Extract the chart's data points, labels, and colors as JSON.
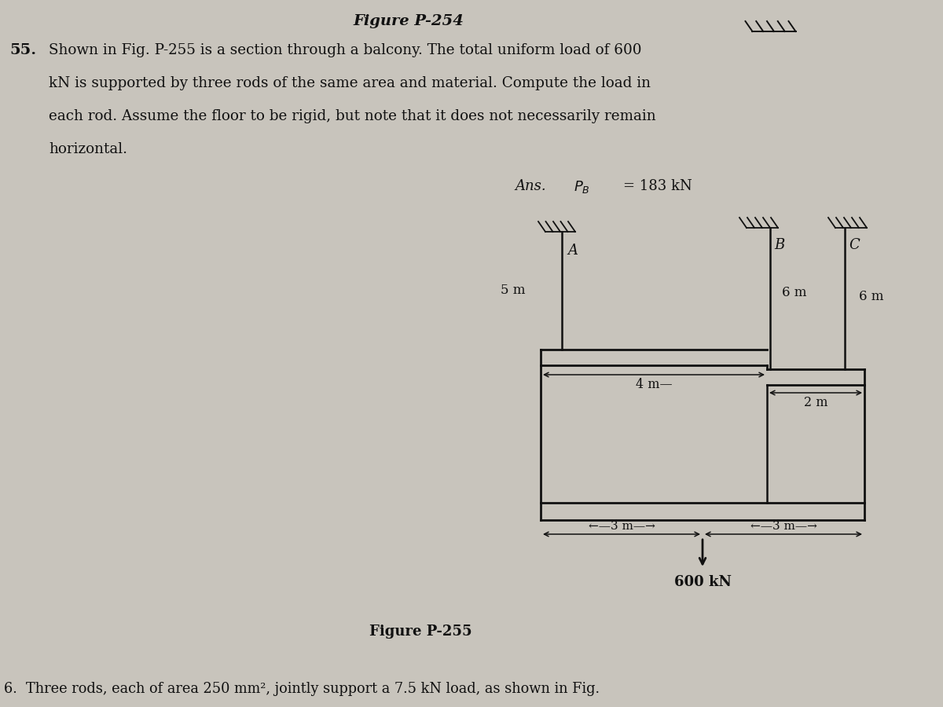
{
  "bg_color": "#c8c4bc",
  "title_top": "Figure P-254",
  "problem_number": "55.",
  "problem_text_line1": "Shown in Fig. P-255 is a section through a balcony. The total uniform load of 600",
  "problem_text_line2": "kN is supported by three rods of the same area and material. Compute the load in",
  "problem_text_line3": "each rod. Assume the floor to be rigid, but note that it does not necessarily remain",
  "problem_text_line4": "horizontal.",
  "ans_label": "Ans.",
  "ans_value": "P",
  "ans_sub": "B",
  "ans_rest": " = 183 kN",
  "figure_label": "Figure P-255",
  "load_label": "600 kN",
  "next_problem": "6.  Three rods, each of area 250 mm², jointly support a 7.5 kN load, as shown in Fig.",
  "rod_A_label": "A",
  "rod_B_label": "B",
  "rod_C_label": "C",
  "dim_5m": "5 m",
  "dim_6m_B": "6 m",
  "dim_6m_C": "6 m",
  "dim_4m": "— 4 m —",
  "dim_2m": "2 m",
  "dim_3m_left": "←—3 m—→",
  "dim_3m_right": "←—3 m—→",
  "text_color": "#111111",
  "line_color": "#111111"
}
